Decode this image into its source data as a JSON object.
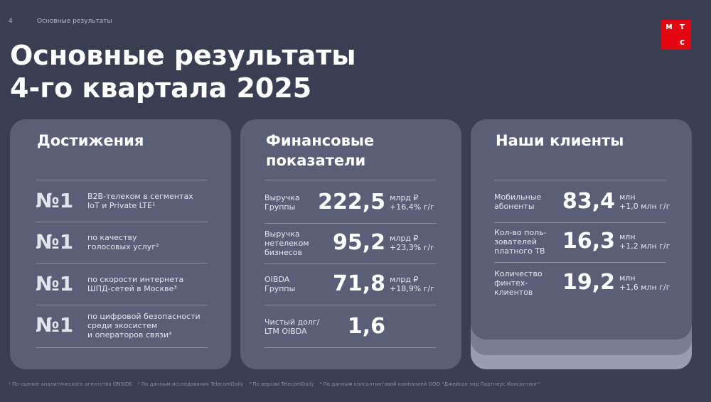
{
  "header": {
    "page_number": "4",
    "section": "Основные результаты",
    "logo": [
      "м",
      "т",
      "с"
    ],
    "title": [
      "Основные результаты",
      "4-го квартала 2025"
    ]
  },
  "achievements": {
    "title": "Достижения",
    "rows": [
      {
        "rank": "№1",
        "text": [
          "B2B-телеком в сегментах",
          "IoT и Private LTE¹"
        ]
      },
      {
        "rank": "№1",
        "text": [
          "по качеству",
          "голосовых услуг²"
        ]
      },
      {
        "rank": "№1",
        "text": [
          "по скорости интернета",
          "ШПД-сетей в Москве³"
        ]
      },
      {
        "rank": "№1",
        "text": [
          "по цифровой безопасности",
          "среди экосистем",
          "и операторов связи⁴"
        ]
      }
    ]
  },
  "financials": {
    "title": [
      "Финансовые",
      "показатели"
    ],
    "rows": [
      {
        "label": [
          "Выручка",
          "Группы"
        ],
        "value": "222,5",
        "unit": [
          "млрд ₽",
          "+16,4% г/г"
        ]
      },
      {
        "label": [
          "Выручка",
          "нетелеком",
          "бизнесов"
        ],
        "value": "95,2",
        "unit": [
          "млрд ₽",
          "+23,3% г/г"
        ]
      },
      {
        "label": [
          "OIBDA",
          "Группы"
        ],
        "value": "71,8",
        "unit": [
          "млрд ₽",
          "+18,9% г/г"
        ]
      },
      {
        "label": [
          "Чистый долг/",
          "LTM OIBDA"
        ],
        "value": "1,6",
        "unit": []
      }
    ]
  },
  "clients": {
    "title": "Наши клиенты",
    "rows": [
      {
        "label": [
          "Мобильные",
          "абоненты"
        ],
        "value": "83,4",
        "unit": [
          "млн",
          "+1,0 млн г/г"
        ]
      },
      {
        "label": [
          "Кол-во поль-",
          "зователей",
          "платного ТВ"
        ],
        "value": "16,3",
        "unit": [
          "млн",
          "+1,2 млн г/г"
        ]
      },
      {
        "label": [
          "Количество",
          "финтех-",
          "клиентов"
        ],
        "value": "19,2",
        "unit": [
          "млн",
          "+1,6 млн г/г"
        ]
      }
    ]
  },
  "footnotes": [
    "¹ По оценке аналитического агентства ONSIDE",
    "² По данным исследования TelecomDaily",
    "³ По версии TelecomDaily",
    "⁴ По данным консалтинговой компанией ООО \"Джейсон энд Партнерс Консалтинг\""
  ]
}
